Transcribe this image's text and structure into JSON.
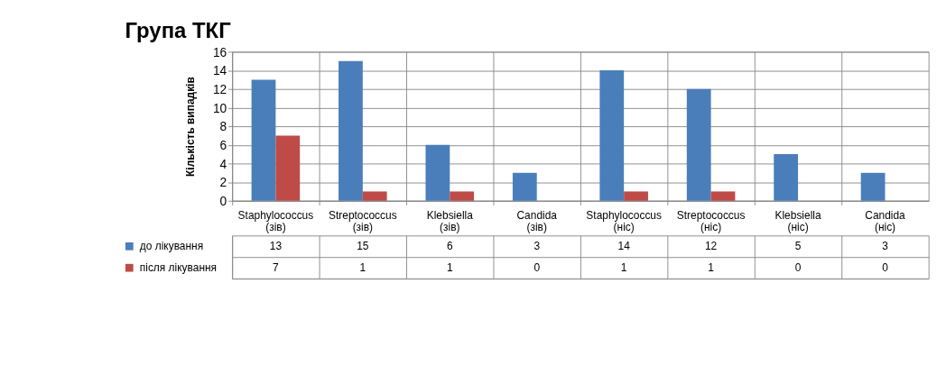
{
  "chart_data": {
    "type": "bar",
    "title": "Група ТКГ",
    "ylabel": "Кількість випадків",
    "categories": [
      "Staphylococcus (зів)",
      "Streptococcus (зів)",
      "Klebsiella (зів)",
      "Candida (зів)",
      "Staphylococcus (ніс)",
      "Streptococcus (ніс)",
      "Klebsiella (ніс)",
      "Candida (ніс)"
    ],
    "series": [
      {
        "name": "до лікування",
        "color": "#4a7ebb",
        "values": [
          13,
          15,
          6,
          3,
          14,
          12,
          5,
          3
        ]
      },
      {
        "name": "після лікування",
        "color": "#be4b48",
        "values": [
          7,
          1,
          1,
          0,
          1,
          1,
          0,
          0
        ]
      }
    ],
    "ylim": [
      0,
      16
    ],
    "yticks": [
      0,
      2,
      4,
      6,
      8,
      10,
      12,
      14,
      16
    ],
    "grid": "y",
    "data_labels": true,
    "legend": "bottom left"
  }
}
